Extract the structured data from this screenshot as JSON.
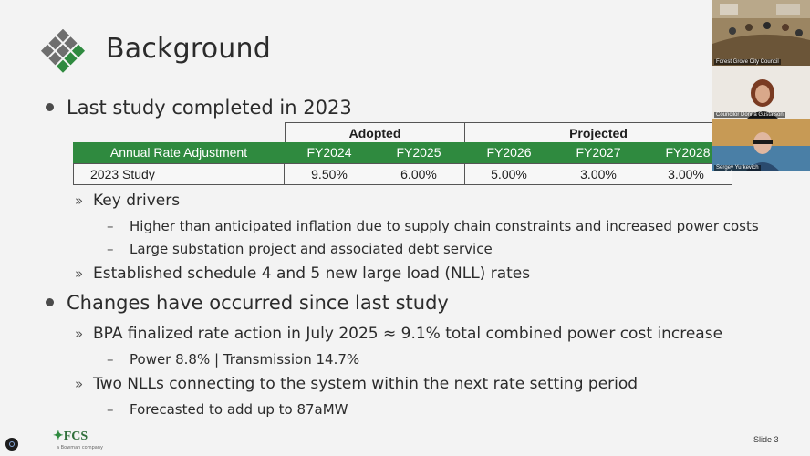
{
  "slide": {
    "title": "Background",
    "bullets": {
      "b1": "Last study completed in 2023",
      "b1_1": "Key drivers",
      "b1_1_1": "Higher than anticipated inflation due to supply chain constraints and increased power costs",
      "b1_1_2": "Large substation project and associated debt service",
      "b1_2": "Established schedule 4 and 5 new large load (NLL) rates",
      "b2": "Changes have occurred since last study",
      "b2_1": "BPA finalized rate action in July 2025 ≈ 9.1% total combined power cost increase",
      "b2_1_1": "Power 8.8% | Transmission 14.7%",
      "b2_2": "Two NLLs connecting to the system within the next rate setting period",
      "b2_2_1": "Forecasted to add up to 87aMW"
    },
    "table": {
      "groups": [
        "Adopted",
        "Projected"
      ],
      "header_label": "Annual Rate Adjustment",
      "years": [
        "FY2024",
        "FY2025",
        "FY2026",
        "FY2027",
        "FY2028"
      ],
      "row_label": "2023 Study",
      "values": [
        "9.50%",
        "6.00%",
        "5.00%",
        "3.00%",
        "3.00%"
      ]
    },
    "footer": {
      "logo": "FCS",
      "logo_sub": "a Bowman company",
      "slide_number": "Slide 3"
    }
  },
  "participants": [
    {
      "label": "Forest Grove City Council"
    },
    {
      "label": "Councilor Donna Gustafson"
    },
    {
      "label": "Sergey Yurkevich"
    }
  ],
  "colors": {
    "table_header_green": "#2f8a3f",
    "logo_green": "#2f8a3f",
    "logo_gray": "#707070"
  }
}
